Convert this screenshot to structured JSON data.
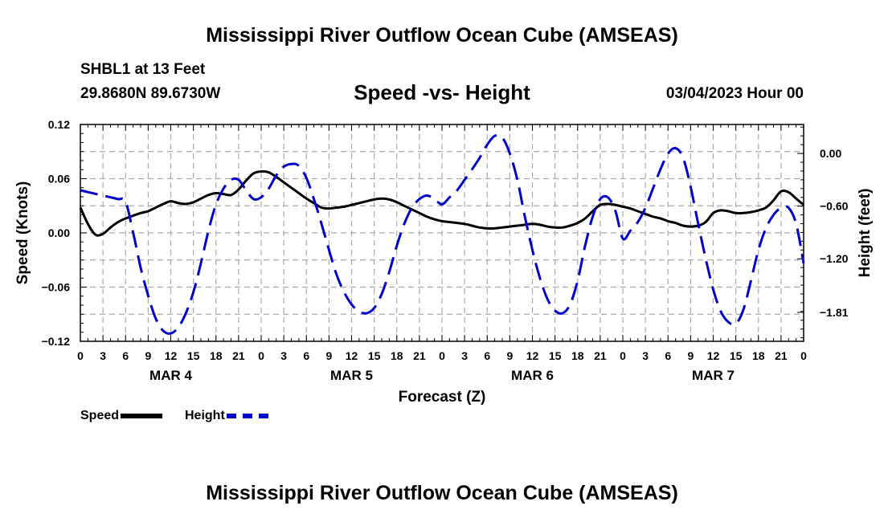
{
  "header": {
    "main_title": "Mississippi River Outflow Ocean Cube (AMSEAS)",
    "station_line": "SHBL1 at 13 Feet",
    "coords_line": "29.8680N  89.6730W",
    "subtitle": "Speed -vs- Height",
    "date_line": "03/04/2023 Hour 00"
  },
  "footer": {
    "main_title": "Mississippi River Outflow Ocean Cube (AMSEAS)"
  },
  "legend": {
    "speed_label": "Speed",
    "height_label": "Height"
  },
  "colors": {
    "speed": "#000000",
    "height": "#0000cc",
    "grid": "#aaaaaa"
  },
  "chart_data": {
    "type": "line",
    "title": "Speed -vs- Height",
    "xlabel": "Forecast (Z)",
    "ylabel_left": "Speed (Knots)",
    "ylabel_right": "Height (feet)",
    "x_range": [
      0,
      96
    ],
    "x_tick_labels": [
      "0",
      "3",
      "6",
      "9",
      "12",
      "15",
      "18",
      "21",
      "0",
      "3",
      "6",
      "9",
      "12",
      "15",
      "18",
      "21",
      "0",
      "3",
      "6",
      "9",
      "12",
      "15",
      "18",
      "21",
      "0",
      "3",
      "6",
      "9",
      "12",
      "15",
      "18",
      "21",
      "0"
    ],
    "day_labels": [
      {
        "label": "MAR 4",
        "hour": 12
      },
      {
        "label": "MAR 5",
        "hour": 36
      },
      {
        "label": "MAR 6",
        "hour": 60
      },
      {
        "label": "MAR 7",
        "hour": 84
      }
    ],
    "y_left": {
      "range": [
        -0.12,
        0.12
      ],
      "ticks": [
        0.12,
        0.06,
        0.0,
        -0.06,
        -0.12
      ],
      "tick_labels": [
        "0.12",
        "0.06",
        "0.00",
        "−0.06",
        "−0.12"
      ]
    },
    "y_right": {
      "range": [
        -2.14,
        0.33
      ],
      "ticks": [
        0.0,
        -0.6,
        -1.2,
        -1.81
      ],
      "tick_labels": [
        "0.00",
        "−0.60",
        "−1.20",
        "−1.81"
      ]
    },
    "series": [
      {
        "name": "Speed",
        "axis": "left",
        "style": "solid",
        "x": [
          0,
          1,
          2,
          3,
          4,
          5,
          6,
          7,
          8,
          9,
          10,
          11,
          12,
          13,
          14,
          15,
          16,
          17,
          18,
          19,
          20,
          21,
          22,
          23,
          24,
          25,
          26,
          27,
          28,
          29,
          30,
          31,
          32,
          33,
          34,
          35,
          36,
          37,
          38,
          39,
          40,
          41,
          42,
          43,
          44,
          45,
          46,
          47,
          48,
          49,
          50,
          51,
          52,
          53,
          54,
          55,
          56,
          57,
          58,
          59,
          60,
          61,
          62,
          63,
          64,
          65,
          66,
          67,
          68,
          69,
          70,
          71,
          72,
          73,
          74,
          75,
          76,
          77,
          78,
          79,
          80,
          81,
          82,
          83,
          84,
          85,
          86,
          87,
          88,
          89,
          90,
          91,
          92,
          93,
          94,
          95,
          96
        ],
        "values": [
          0.028,
          0.01,
          -0.002,
          -0.001,
          0.006,
          0.012,
          0.016,
          0.019,
          0.022,
          0.024,
          0.028,
          0.032,
          0.035,
          0.033,
          0.032,
          0.034,
          0.038,
          0.042,
          0.044,
          0.043,
          0.042,
          0.048,
          0.058,
          0.066,
          0.068,
          0.067,
          0.062,
          0.056,
          0.05,
          0.044,
          0.038,
          0.033,
          0.028,
          0.027,
          0.028,
          0.029,
          0.031,
          0.033,
          0.035,
          0.037,
          0.038,
          0.037,
          0.034,
          0.03,
          0.026,
          0.022,
          0.018,
          0.015,
          0.013,
          0.012,
          0.011,
          0.01,
          0.008,
          0.006,
          0.005,
          0.005,
          0.006,
          0.007,
          0.008,
          0.009,
          0.01,
          0.009,
          0.007,
          0.006,
          0.006,
          0.008,
          0.011,
          0.016,
          0.024,
          0.031,
          0.032,
          0.031,
          0.029,
          0.027,
          0.024,
          0.021,
          0.018,
          0.016,
          0.013,
          0.011,
          0.008,
          0.007,
          0.008,
          0.012,
          0.022,
          0.025,
          0.024,
          0.022,
          0.022,
          0.023,
          0.025,
          0.028,
          0.036,
          0.046,
          0.045,
          0.038,
          0.031
        ]
      },
      {
        "name": "Height",
        "axis": "right",
        "style": "dashed",
        "x": [
          0,
          1,
          2,
          3,
          4,
          5,
          6,
          7,
          8,
          9,
          10,
          11,
          12,
          13,
          14,
          15,
          16,
          17,
          18,
          19,
          20,
          21,
          22,
          23,
          24,
          25,
          26,
          27,
          28,
          29,
          30,
          31,
          32,
          33,
          34,
          35,
          36,
          37,
          38,
          39,
          40,
          41,
          42,
          43,
          44,
          45,
          46,
          47,
          48,
          49,
          50,
          51,
          52,
          53,
          54,
          55,
          56,
          57,
          58,
          59,
          60,
          61,
          62,
          63,
          64,
          65,
          66,
          67,
          68,
          69,
          70,
          71,
          72,
          73,
          74,
          75,
          76,
          77,
          78,
          79,
          80,
          81,
          82,
          83,
          84,
          85,
          86,
          87,
          88,
          89,
          90,
          91,
          92,
          93,
          94,
          95,
          96
        ],
        "values": [
          -0.42,
          -0.44,
          -0.46,
          -0.48,
          -0.5,
          -0.52,
          -0.55,
          -0.9,
          -1.3,
          -1.62,
          -1.88,
          -2.02,
          -2.05,
          -1.98,
          -1.82,
          -1.58,
          -1.25,
          -0.88,
          -0.58,
          -0.4,
          -0.3,
          -0.3,
          -0.42,
          -0.52,
          -0.5,
          -0.4,
          -0.25,
          -0.15,
          -0.12,
          -0.14,
          -0.28,
          -0.52,
          -0.8,
          -1.1,
          -1.38,
          -1.58,
          -1.72,
          -1.8,
          -1.82,
          -1.76,
          -1.6,
          -1.35,
          -1.05,
          -0.8,
          -0.62,
          -0.52,
          -0.48,
          -0.52,
          -0.58,
          -0.5,
          -0.42,
          -0.3,
          -0.18,
          -0.05,
          0.1,
          0.2,
          0.18,
          0.0,
          -0.3,
          -0.72,
          -1.1,
          -1.42,
          -1.66,
          -1.79,
          -1.82,
          -1.72,
          -1.45,
          -1.05,
          -0.72,
          -0.52,
          -0.5,
          -0.65,
          -0.97,
          -0.88,
          -0.78,
          -0.62,
          -0.4,
          -0.18,
          0.0,
          0.06,
          -0.05,
          -0.38,
          -0.8,
          -1.2,
          -1.55,
          -1.8,
          -1.92,
          -1.94,
          -1.78,
          -1.45,
          -1.1,
          -0.85,
          -0.7,
          -0.62,
          -0.62,
          -0.8,
          -1.25
        ]
      }
    ]
  }
}
